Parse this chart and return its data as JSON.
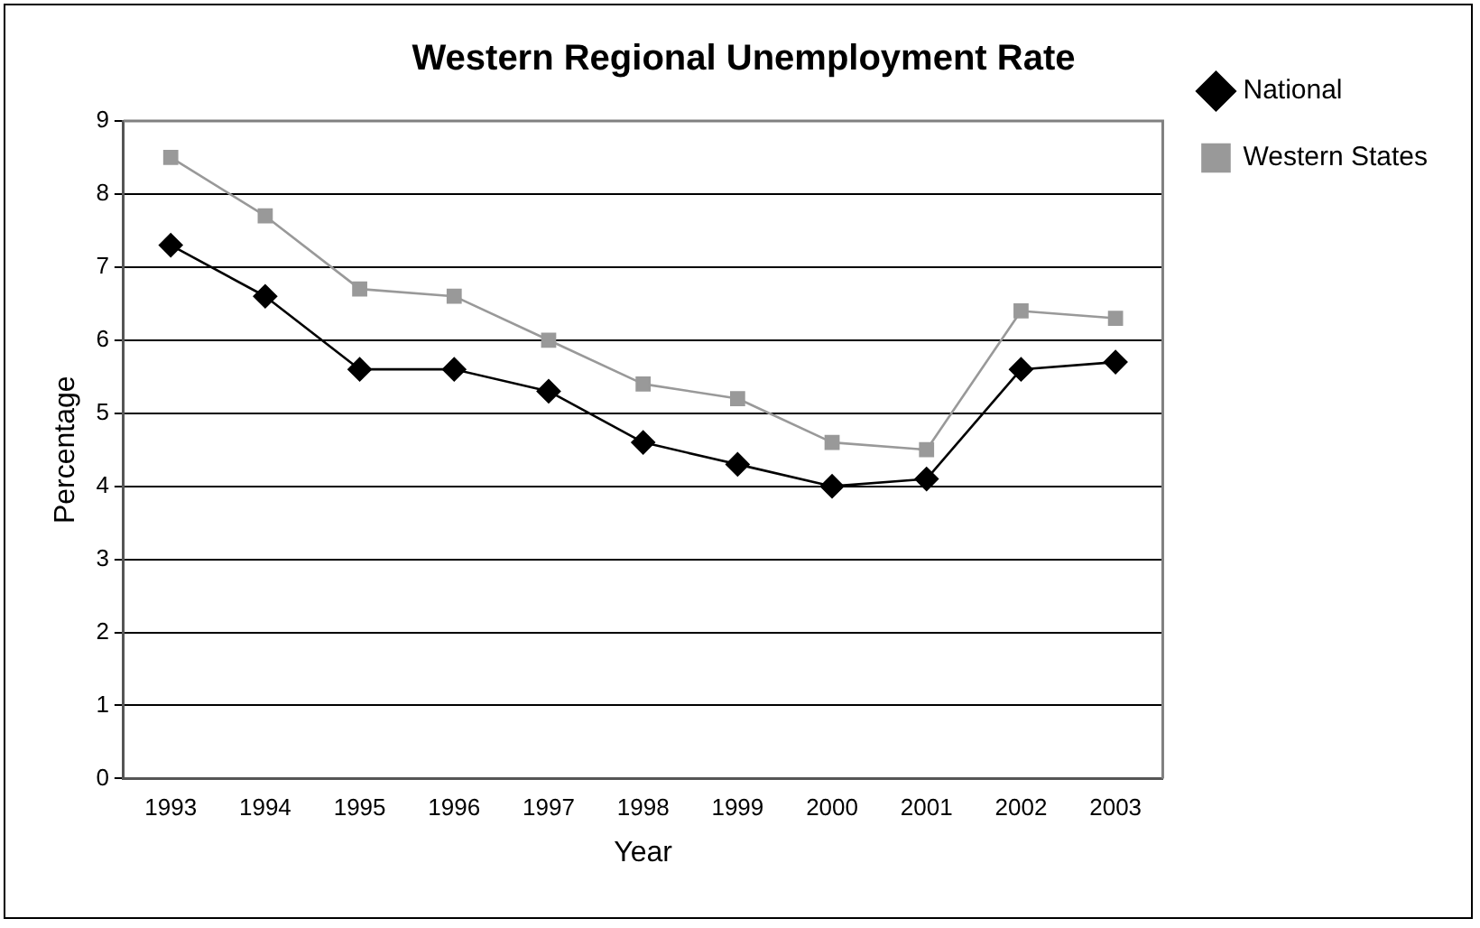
{
  "chart_data": {
    "type": "line",
    "title": "Western Regional Unemployment Rate",
    "xlabel": "Year",
    "ylabel": "Percentage",
    "categories": [
      "1993",
      "1994",
      "1995",
      "1996",
      "1997",
      "1998",
      "1999",
      "2000",
      "2001",
      "2002",
      "2003"
    ],
    "series": [
      {
        "name": "National",
        "color": "#000000",
        "marker": "diamond",
        "values": [
          7.3,
          6.6,
          5.6,
          5.6,
          5.3,
          4.6,
          4.3,
          4.0,
          4.1,
          5.6,
          5.7
        ]
      },
      {
        "name": "Western States",
        "color": "#999999",
        "marker": "square",
        "values": [
          8.5,
          7.7,
          6.7,
          6.6,
          6.0,
          5.4,
          5.2,
          4.6,
          4.5,
          6.4,
          6.3
        ]
      }
    ],
    "ylim": [
      0,
      9
    ],
    "yticks": [
      0,
      1,
      2,
      3,
      4,
      5,
      6,
      7,
      8,
      9
    ],
    "grid": "y",
    "legend": "right"
  }
}
